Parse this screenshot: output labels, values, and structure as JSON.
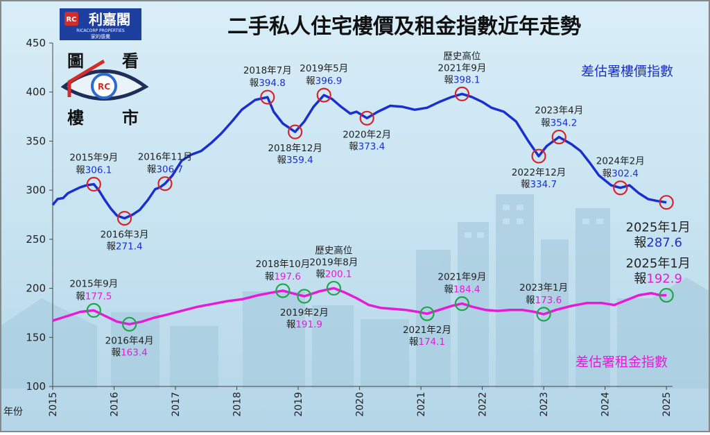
{
  "brand": {
    "name": "利嘉閣",
    "subtitle": "RICACORP PROPERTIES",
    "slogan": "家的感覺",
    "logo_mark": "RC"
  },
  "badge": {
    "chars": [
      "圖",
      "看",
      "樓",
      "市"
    ]
  },
  "chart_data": {
    "type": "line",
    "title": "二手私人住宅樓價及租金指數近年走勢",
    "xlabel": "年份",
    "ylabel": "",
    "xlim": [
      2015.0,
      2025.1
    ],
    "ylim": [
      100,
      450
    ],
    "y_ticks": [
      100,
      150,
      200,
      250,
      300,
      350,
      400,
      450
    ],
    "x_ticks": [
      "2015",
      "2016",
      "2017",
      "2018",
      "2019",
      "2020",
      "2021",
      "2022",
      "2023",
      "2024",
      "2025"
    ],
    "series": [
      {
        "name": "差估署樓價指數",
        "color": "#1a2fd0",
        "points": [
          [
            2015.0,
            285
          ],
          [
            2015.08,
            291
          ],
          [
            2015.17,
            292
          ],
          [
            2015.25,
            297
          ],
          [
            2015.35,
            300
          ],
          [
            2015.45,
            303
          ],
          [
            2015.55,
            305
          ],
          [
            2015.67,
            306.1
          ],
          [
            2015.75,
            300
          ],
          [
            2015.85,
            290
          ],
          [
            2015.95,
            281
          ],
          [
            2016.05,
            274
          ],
          [
            2016.17,
            271.4
          ],
          [
            2016.3,
            275
          ],
          [
            2016.42,
            280
          ],
          [
            2016.55,
            290
          ],
          [
            2016.67,
            301
          ],
          [
            2016.75,
            303
          ],
          [
            2016.83,
            306.7
          ],
          [
            2016.95,
            315
          ],
          [
            2017.1,
            330
          ],
          [
            2017.25,
            336
          ],
          [
            2017.42,
            340
          ],
          [
            2017.58,
            348
          ],
          [
            2017.75,
            358
          ],
          [
            2017.92,
            370
          ],
          [
            2018.08,
            382
          ],
          [
            2018.3,
            392
          ],
          [
            2018.5,
            394.8
          ],
          [
            2018.6,
            380
          ],
          [
            2018.75,
            368
          ],
          [
            2018.95,
            359.4
          ],
          [
            2019.1,
            370
          ],
          [
            2019.25,
            385
          ],
          [
            2019.42,
            396.9
          ],
          [
            2019.55,
            393
          ],
          [
            2019.7,
            385
          ],
          [
            2019.85,
            378
          ],
          [
            2019.95,
            380
          ],
          [
            2020.12,
            373.4
          ],
          [
            2020.3,
            380
          ],
          [
            2020.5,
            386
          ],
          [
            2020.7,
            385
          ],
          [
            2020.9,
            382
          ],
          [
            2021.1,
            384
          ],
          [
            2021.3,
            390
          ],
          [
            2021.5,
            395
          ],
          [
            2021.67,
            398.1
          ],
          [
            2021.83,
            395
          ],
          [
            2022.0,
            390
          ],
          [
            2022.15,
            384
          ],
          [
            2022.35,
            380
          ],
          [
            2022.55,
            370
          ],
          [
            2022.75,
            350
          ],
          [
            2022.92,
            334.7
          ],
          [
            2023.05,
            345
          ],
          [
            2023.25,
            354.2
          ],
          [
            2023.45,
            347
          ],
          [
            2023.6,
            340
          ],
          [
            2023.75,
            328
          ],
          [
            2023.9,
            315
          ],
          [
            2024.1,
            305
          ],
          [
            2024.25,
            302.4
          ],
          [
            2024.4,
            305
          ],
          [
            2024.55,
            297
          ],
          [
            2024.7,
            291
          ],
          [
            2024.85,
            289
          ],
          [
            2025.0,
            287.6
          ]
        ]
      },
      {
        "name": "差估署租金指數",
        "color": "#e51bd8",
        "points": [
          [
            2015.0,
            167
          ],
          [
            2015.15,
            170
          ],
          [
            2015.3,
            173
          ],
          [
            2015.45,
            176
          ],
          [
            2015.67,
            177.5
          ],
          [
            2015.85,
            172
          ],
          [
            2016.05,
            166
          ],
          [
            2016.25,
            163.4
          ],
          [
            2016.45,
            166
          ],
          [
            2016.65,
            170
          ],
          [
            2016.85,
            173
          ],
          [
            2017.1,
            177
          ],
          [
            2017.35,
            181
          ],
          [
            2017.6,
            184
          ],
          [
            2017.85,
            187
          ],
          [
            2018.1,
            189
          ],
          [
            2018.35,
            193
          ],
          [
            2018.6,
            196
          ],
          [
            2018.75,
            197.6
          ],
          [
            2018.9,
            195
          ],
          [
            2019.1,
            191.9
          ],
          [
            2019.35,
            197
          ],
          [
            2019.58,
            200.1
          ],
          [
            2019.75,
            196
          ],
          [
            2019.95,
            190
          ],
          [
            2020.15,
            183
          ],
          [
            2020.35,
            180
          ],
          [
            2020.55,
            179
          ],
          [
            2020.75,
            178
          ],
          [
            2020.95,
            176
          ],
          [
            2021.1,
            174.1
          ],
          [
            2021.3,
            178
          ],
          [
            2021.5,
            182
          ],
          [
            2021.67,
            184.4
          ],
          [
            2021.85,
            181
          ],
          [
            2022.05,
            178
          ],
          [
            2022.25,
            177
          ],
          [
            2022.45,
            178
          ],
          [
            2022.65,
            178
          ],
          [
            2022.85,
            176
          ],
          [
            2023.0,
            173.6
          ],
          [
            2023.2,
            178
          ],
          [
            2023.45,
            182
          ],
          [
            2023.7,
            185
          ],
          [
            2023.95,
            185
          ],
          [
            2024.15,
            183
          ],
          [
            2024.35,
            188
          ],
          [
            2024.55,
            193
          ],
          [
            2024.75,
            195
          ],
          [
            2024.9,
            193
          ],
          [
            2025.0,
            192.9
          ]
        ]
      }
    ],
    "annotations": [
      {
        "series": 0,
        "x": 2015.67,
        "y": 306.1,
        "label": "2015年9月",
        "prefix": "報",
        "value": "306.1",
        "pos": "above"
      },
      {
        "series": 0,
        "x": 2016.17,
        "y": 271.4,
        "label": "2016年3月",
        "prefix": "報",
        "value": "271.4",
        "pos": "below"
      },
      {
        "series": 0,
        "x": 2016.83,
        "y": 306.7,
        "label": "2016年11月",
        "prefix": "報",
        "value": "306.7",
        "pos": "above"
      },
      {
        "series": 0,
        "x": 2018.5,
        "y": 394.8,
        "label": "2018年7月",
        "prefix": "報",
        "value": "394.8",
        "pos": "above"
      },
      {
        "series": 0,
        "x": 2018.95,
        "y": 359.4,
        "label": "2018年12月",
        "prefix": "報",
        "value": "359.4",
        "pos": "below"
      },
      {
        "series": 0,
        "x": 2019.42,
        "y": 396.9,
        "label": "2019年5月",
        "prefix": "報",
        "value": "396.9",
        "pos": "above"
      },
      {
        "series": 0,
        "x": 2020.12,
        "y": 373.4,
        "label": "2020年2月",
        "prefix": "報",
        "value": "373.4",
        "pos": "below"
      },
      {
        "series": 0,
        "x": 2021.67,
        "y": 398.1,
        "label": "歷史高位",
        "label2": "2021年9月",
        "prefix": "報",
        "value": "398.1",
        "pos": "above3"
      },
      {
        "series": 0,
        "x": 2022.92,
        "y": 334.7,
        "label": "2022年12月",
        "prefix": "報",
        "value": "334.7",
        "pos": "below"
      },
      {
        "series": 0,
        "x": 2023.25,
        "y": 354.2,
        "label": "2023年4月",
        "prefix": "報",
        "value": "354.2",
        "pos": "above"
      },
      {
        "series": 0,
        "x": 2024.25,
        "y": 302.4,
        "label": "2024年2月",
        "prefix": "報",
        "value": "302.4",
        "pos": "above"
      },
      {
        "series": 0,
        "x": 2025.0,
        "y": 287.6,
        "label": "2025年1月",
        "prefix": "報",
        "value": "287.6",
        "pos": "big_below"
      },
      {
        "series": 1,
        "x": 2015.67,
        "y": 177.5,
        "label": "2015年9月",
        "prefix": "報",
        "value": "177.5",
        "pos": "above"
      },
      {
        "series": 1,
        "x": 2016.25,
        "y": 163.4,
        "label": "2016年4月",
        "prefix": "報",
        "value": "163.4",
        "pos": "below"
      },
      {
        "series": 1,
        "x": 2018.75,
        "y": 197.6,
        "label": "2018年10月",
        "prefix": "報",
        "value": "197.6",
        "pos": "above"
      },
      {
        "series": 1,
        "x": 2019.1,
        "y": 191.9,
        "label": "2019年2月",
        "prefix": "報",
        "value": "191.9",
        "pos": "below"
      },
      {
        "series": 1,
        "x": 2019.58,
        "y": 200.1,
        "label": "歷史高位",
        "label2": "2019年8月",
        "prefix": "報",
        "value": "200.1",
        "pos": "above3"
      },
      {
        "series": 1,
        "x": 2021.1,
        "y": 174.1,
        "label": "2021年2月",
        "prefix": "報",
        "value": "174.1",
        "pos": "below"
      },
      {
        "series": 1,
        "x": 2021.67,
        "y": 184.4,
        "label": "2021年9月",
        "prefix": "報",
        "value": "184.4",
        "pos": "above"
      },
      {
        "series": 1,
        "x": 2023.0,
        "y": 173.6,
        "label": "2023年1月",
        "prefix": "報",
        "value": "173.6",
        "pos": "above"
      },
      {
        "series": 1,
        "x": 2025.0,
        "y": 192.9,
        "label": "2025年1月",
        "prefix": "報",
        "value": "192.9",
        "pos": "big_above"
      }
    ]
  }
}
